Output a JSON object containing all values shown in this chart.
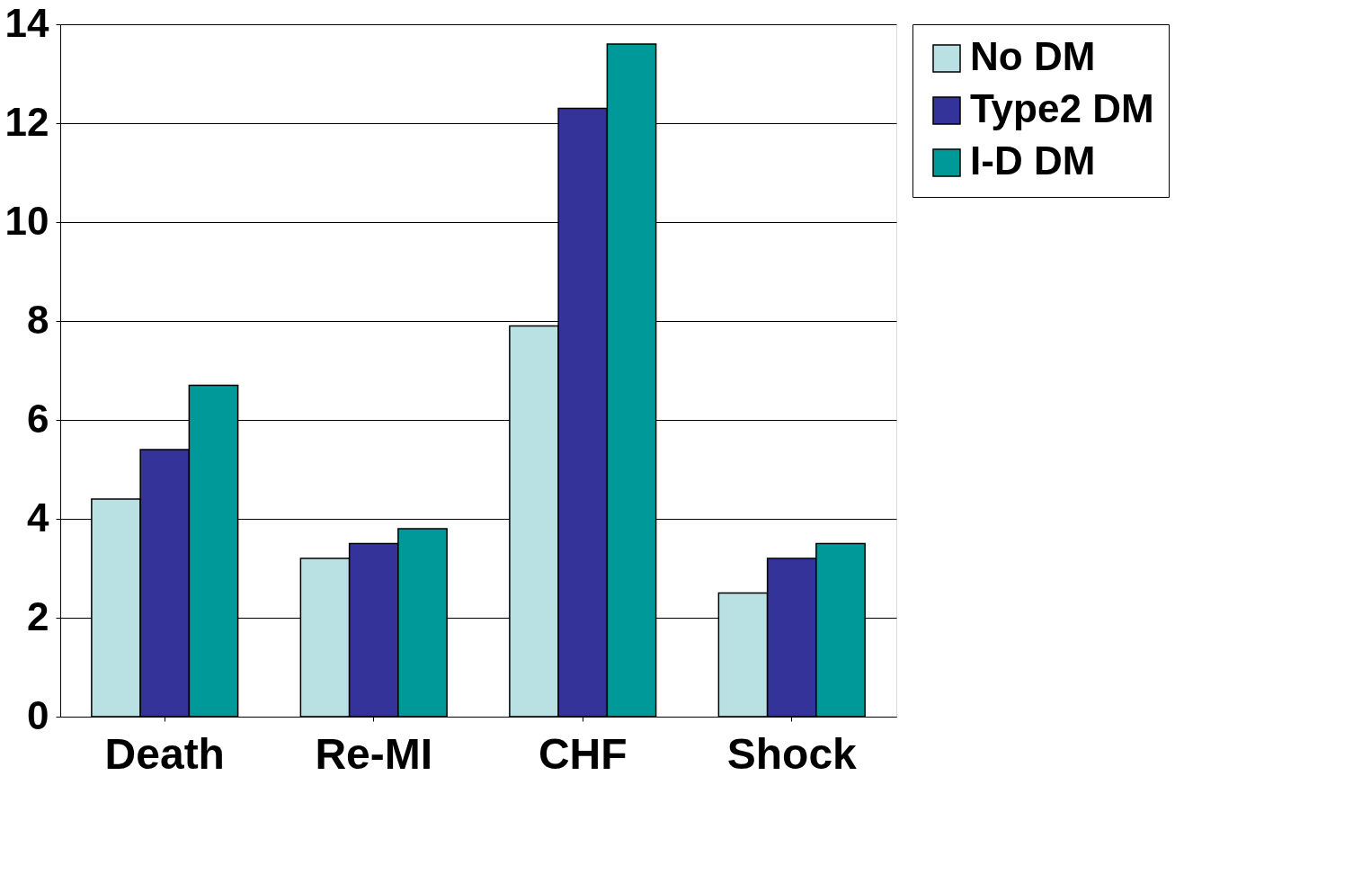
{
  "chart_data": {
    "type": "bar",
    "categories": [
      "Death",
      "Re-MI",
      "CHF",
      "Shock"
    ],
    "series": [
      {
        "name": "No DM",
        "color": "#b9e0e3",
        "values": [
          4.4,
          3.2,
          7.9,
          2.5
        ]
      },
      {
        "name": "Type2 DM",
        "color": "#333399",
        "values": [
          5.4,
          3.5,
          12.3,
          3.2
        ]
      },
      {
        "name": "I-D DM",
        "color": "#009999",
        "values": [
          6.7,
          3.8,
          13.6,
          3.5
        ]
      }
    ],
    "ylim": [
      0,
      14
    ],
    "yticks": [
      0,
      2,
      4,
      6,
      8,
      10,
      12,
      14
    ],
    "grid": "y",
    "legend": "right"
  }
}
